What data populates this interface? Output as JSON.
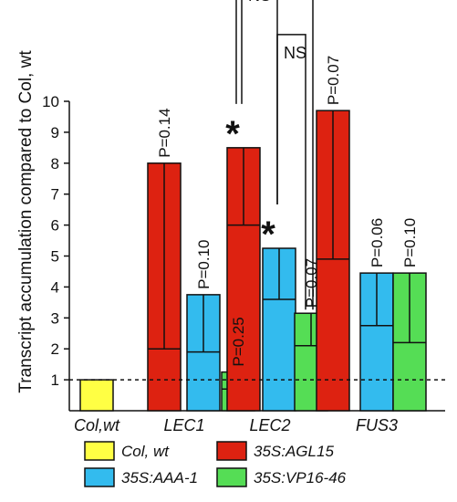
{
  "chart_data": {
    "type": "bar",
    "ylabel": "Transcript accumulation compared to Col, wt",
    "ylim": [
      0,
      10
    ],
    "yticks": [
      "1",
      "2",
      "3",
      "4",
      "5",
      "6",
      "7",
      "8",
      "9",
      "10"
    ],
    "reference_line": 1,
    "series": [
      {
        "name": "Col, wt",
        "color": "#ffff44"
      },
      {
        "name": "35S:AGL15",
        "color": "#dd2211"
      },
      {
        "name": "35S:AAA-1",
        "color": "#33bbee"
      },
      {
        "name": "35S:VP16-46",
        "color": "#55dd55"
      }
    ],
    "groups": [
      {
        "label": "Col,wt",
        "bars": [
          {
            "series": 0,
            "value": 1.0
          }
        ]
      },
      {
        "label": "LEC1",
        "bars": [
          {
            "series": 1,
            "value": 8.0,
            "err_low": 2.0,
            "p": "P=0.14"
          },
          {
            "series": 2,
            "value": 3.75,
            "err_low": 1.9,
            "p": "P=0.10"
          },
          {
            "series": 3,
            "value": 1.25,
            "err_low": 0.7,
            "p": "P=0.25"
          }
        ]
      },
      {
        "label": "LEC2",
        "bars": [
          {
            "series": 1,
            "value": 8.5,
            "err_low": 6.0,
            "mark": "*"
          },
          {
            "series": 2,
            "value": 5.25,
            "err_low": 3.6,
            "mark": "*"
          },
          {
            "series": 3,
            "value": 3.15,
            "err_low": 2.1,
            "p": "P=0.07"
          }
        ]
      },
      {
        "label": "FUS3",
        "bars": [
          {
            "series": 1,
            "value": 9.7,
            "err_low": 4.9,
            "p": "P=0.07"
          },
          {
            "series": 2,
            "value": 4.45,
            "err_low": 2.75,
            "p": "P=0.06"
          },
          {
            "series": 3,
            "value": 4.45,
            "err_low": 2.2,
            "p": "P=0.10"
          }
        ]
      }
    ],
    "comparisons": {
      "outer_mark": "*",
      "left_label": "NS",
      "right_label": "NS"
    },
    "legend": {
      "placement": "bottom",
      "items": [
        "Col, wt",
        "35S:AGL15",
        "35S:AAA-1",
        "35S:VP16-46"
      ]
    }
  }
}
